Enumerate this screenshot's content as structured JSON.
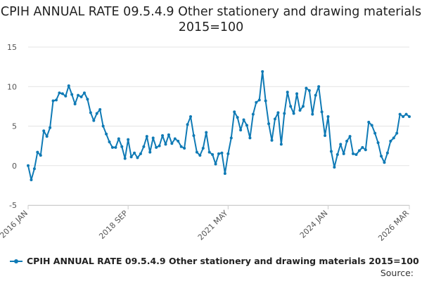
{
  "chart_data": {
    "type": "line",
    "title": "CPIH ANNUAL RATE 09.5.4.9 Other stationery and drawing materials 2015=100",
    "xlabel": "",
    "ylabel": "",
    "ylim": [
      -5,
      15
    ],
    "yticks": [
      15,
      10,
      5,
      0,
      -5
    ],
    "grid": true,
    "legend_position": "bottom",
    "x_start": "2016 JAN",
    "x_end": "2026 MAR",
    "x_tick_labels": [
      "2016 JAN",
      "2018 SEP",
      "2021 MAY",
      "2024 JAN",
      "2026 MAR"
    ],
    "series": [
      {
        "name": "CPIH ANNUAL RATE 09.5.4.9 Other stationery and drawing materials 2015=100",
        "color": "#0f7ab5",
        "values": [
          0.0,
          -1.8,
          -0.4,
          1.7,
          1.3,
          4.4,
          3.7,
          4.8,
          8.2,
          8.3,
          9.2,
          9.1,
          8.8,
          10.1,
          9.0,
          7.8,
          8.9,
          8.7,
          9.2,
          8.4,
          6.7,
          5.7,
          6.6,
          7.1,
          5.0,
          4.0,
          3.0,
          2.3,
          2.3,
          3.4,
          2.4,
          0.9,
          3.3,
          1.1,
          1.6,
          1.0,
          1.5,
          2.4,
          3.7,
          1.7,
          3.5,
          2.3,
          2.5,
          3.8,
          2.7,
          3.9,
          2.8,
          3.4,
          3.1,
          2.4,
          2.2,
          5.2,
          6.2,
          3.8,
          1.7,
          1.3,
          2.2,
          4.2,
          1.7,
          1.4,
          0.2,
          1.5,
          1.6,
          -1.0,
          1.5,
          3.5,
          6.8,
          6.1,
          4.5,
          5.8,
          5.1,
          3.5,
          6.5,
          8.0,
          8.3,
          11.9,
          8.2,
          5.3,
          3.2,
          5.9,
          6.7,
          2.7,
          6.6,
          9.3,
          7.5,
          6.6,
          9.1,
          7.0,
          7.5,
          9.8,
          9.5,
          6.5,
          8.9,
          10.0,
          6.8,
          3.8,
          6.2,
          1.8,
          -0.2,
          1.4,
          2.7,
          1.5,
          3.1,
          3.7,
          1.5,
          1.4,
          1.9,
          2.3,
          2.0,
          5.5,
          5.1,
          4.1,
          2.9,
          1.2,
          0.4,
          1.6,
          3.1,
          3.5,
          4.1,
          6.5,
          6.2,
          6.5,
          6.2
        ]
      }
    ]
  },
  "legend": {
    "label": "CPIH ANNUAL RATE 09.5.4.9 Other stationery and drawing materials 2015=100"
  },
  "source_label": "Source:"
}
